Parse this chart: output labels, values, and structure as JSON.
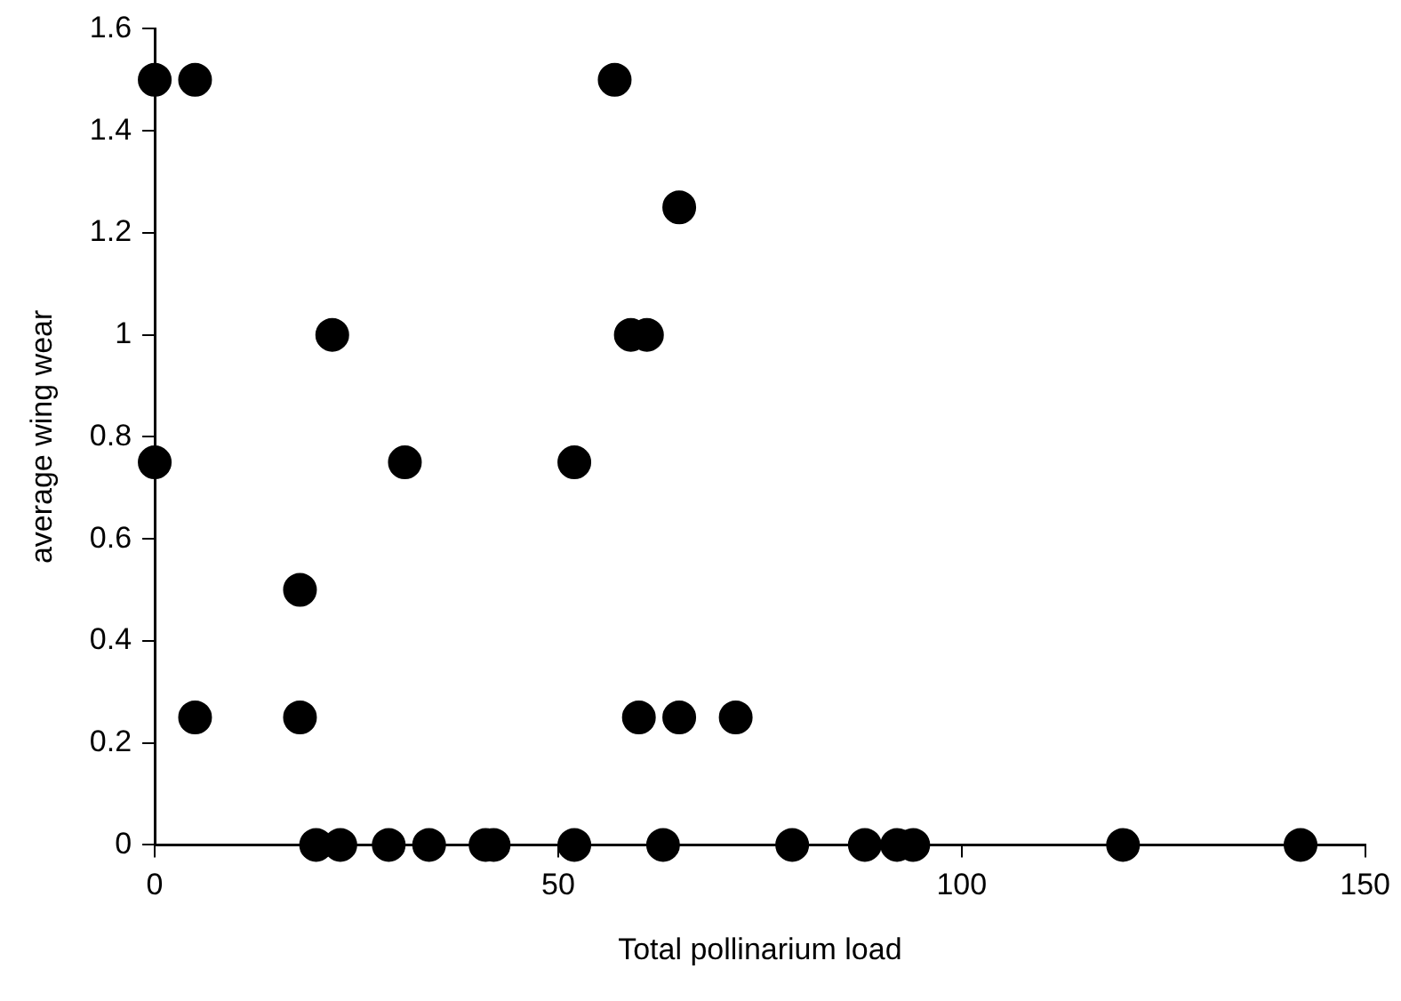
{
  "chart_data": {
    "type": "scatter",
    "xlabel": "Total pollinarium load",
    "ylabel": "average wing wear",
    "xlim": [
      0,
      150
    ],
    "xticks": [
      0,
      50,
      100,
      150
    ],
    "ylim": [
      0,
      1.6
    ],
    "yticks": [
      0,
      0.2,
      0.4,
      0.6,
      0.8,
      1,
      1.2,
      1.4,
      1.6
    ],
    "grid": false,
    "legend": false,
    "marker": "circle",
    "series": [
      {
        "color": "#000000",
        "x": [
          0,
          5,
          57,
          65,
          22,
          59,
          61,
          0,
          31,
          52,
          18,
          5,
          18,
          60,
          65,
          72,
          20,
          23,
          29,
          34,
          41,
          42,
          52,
          63,
          79,
          88,
          92,
          94,
          120,
          142
        ],
        "values": [
          1.5,
          1.5,
          1.5,
          1.25,
          1,
          1,
          1,
          0.75,
          0.75,
          0.75,
          0.5,
          0.25,
          0.25,
          0.25,
          0.25,
          0.25,
          0,
          0,
          0,
          0,
          0,
          0,
          0,
          0,
          0,
          0,
          0,
          0,
          0,
          0
        ]
      }
    ]
  }
}
